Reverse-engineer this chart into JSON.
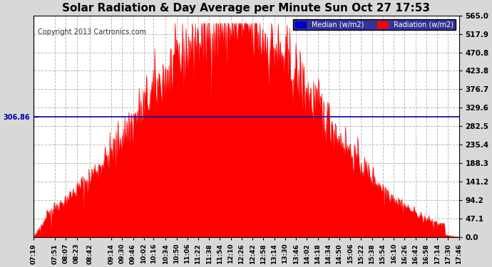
{
  "title": "Solar Radiation & Day Average per Minute Sun Oct 27 17:53",
  "copyright": "Copyright 2013 Cartronics.com",
  "median_value": 306.86,
  "ymax": 565.0,
  "ymin": 0.0,
  "yticks": [
    0.0,
    47.1,
    94.2,
    141.2,
    188.3,
    235.4,
    282.5,
    329.6,
    376.7,
    423.8,
    470.8,
    517.9,
    565.0
  ],
  "background_color": "#d8d8d8",
  "plot_bg_color": "#ffffff",
  "radiation_color": "#ff0000",
  "median_line_color": "#0000aa",
  "grid_color": "#bbbbbb",
  "title_color": "#000000",
  "x_tick_labels": [
    "07:19",
    "07:51",
    "08:07",
    "08:23",
    "08:42",
    "09:14",
    "09:30",
    "09:46",
    "10:02",
    "10:16",
    "10:34",
    "10:50",
    "11:06",
    "11:22",
    "11:38",
    "11:54",
    "12:10",
    "12:26",
    "12:42",
    "12:58",
    "13:14",
    "13:30",
    "13:46",
    "14:02",
    "14:18",
    "14:34",
    "14:50",
    "15:06",
    "15:22",
    "15:38",
    "15:54",
    "16:10",
    "16:26",
    "16:42",
    "16:58",
    "17:14",
    "17:30",
    "17:46"
  ]
}
